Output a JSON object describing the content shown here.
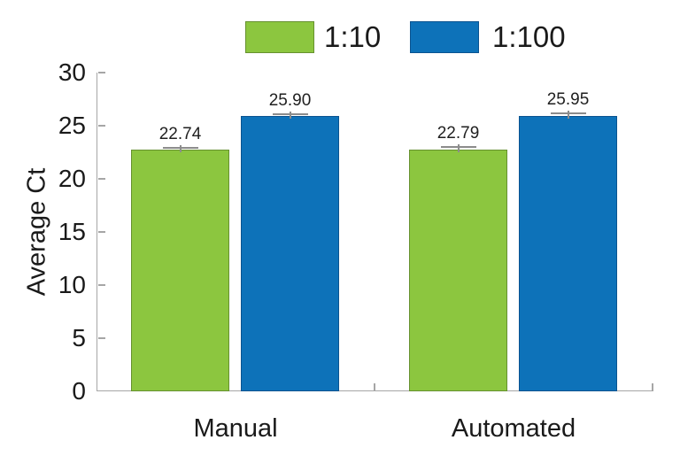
{
  "figure": {
    "background": "#ffffff",
    "text_color": "#1a1a1a",
    "axis_color": "#a6a6a6",
    "error_bar_color": "#8c8c8c"
  },
  "chart_data": {
    "type": "bar",
    "title": "",
    "xlabel": "",
    "ylabel": "Average Ct",
    "ylim": [
      0,
      30
    ],
    "yticks": [
      0,
      5,
      10,
      15,
      20,
      25,
      30
    ],
    "grid": false,
    "legend_position": "top",
    "categories": [
      "Manual",
      "Automated"
    ],
    "series": [
      {
        "name": "1:10",
        "color": "#8CC63F",
        "border_color": "#66912F",
        "values": [
          22.74,
          22.79
        ],
        "labels": [
          "22.74",
          "22.79"
        ],
        "errors": [
          0.2,
          0.2
        ]
      },
      {
        "name": "1:100",
        "color": "#0D72B9",
        "border_color": "#0A5390",
        "values": [
          25.9,
          25.95
        ],
        "labels": [
          "25.90",
          "25.95"
        ],
        "errors": [
          0.2,
          0.2
        ]
      }
    ]
  }
}
